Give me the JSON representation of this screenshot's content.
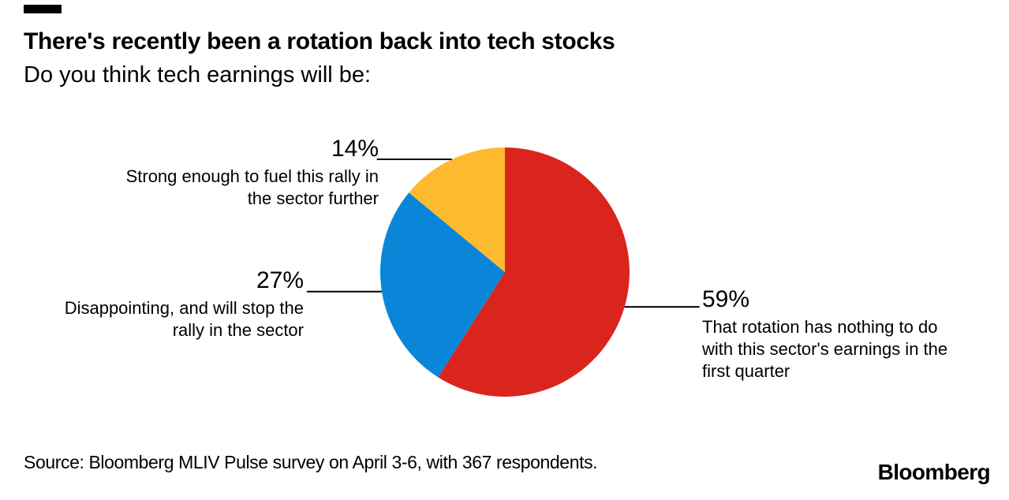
{
  "header": {
    "title": "There's recently been a rotation back into tech stocks",
    "subtitle": "Do you think tech earnings will be:"
  },
  "chart_data": {
    "type": "pie",
    "title": "There's recently been a rotation back into tech stocks",
    "subtitle": "Do you think tech earnings will be:",
    "start_angle_deg": 0,
    "direction": "clockwise",
    "legend_position": "none (direct callout labels with leader lines)",
    "slices": [
      {
        "value": 59,
        "pct_label": "59%",
        "color": "#d9251e",
        "label": "That rotation has nothing to do with this sector's earnings in the first quarter",
        "label_lines": [
          "That rotation has nothing to do",
          "with this sector's earnings in the",
          "first quarter"
        ]
      },
      {
        "value": 27,
        "pct_label": "27%",
        "color": "#0a86d9",
        "label": "Disappointing, and will stop the rally in the sector",
        "label_lines": [
          "Disappointing, and will stop the",
          "rally in the sector"
        ]
      },
      {
        "value": 14,
        "pct_label": "14%",
        "color": "#fdba2f",
        "label": "Strong enough to fuel this rally in the sector further",
        "label_lines": [
          "Strong enough to fuel this rally in",
          "the sector further"
        ]
      }
    ],
    "leader_line_color": "#000000"
  },
  "footer": {
    "source": "Source: Bloomberg MLIV Pulse survey on April 3-6, with 367 respondents.",
    "logo": "Bloomberg"
  }
}
